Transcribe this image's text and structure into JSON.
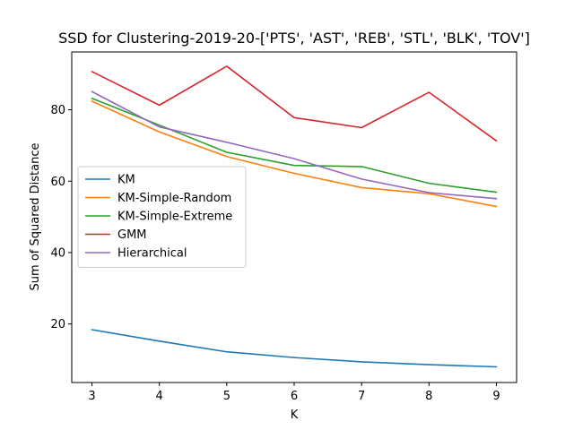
{
  "chart_data": {
    "type": "line",
    "title": "SSD for Clustering-2019-20-['PTS', 'AST', 'REB', 'STL', 'BLK', 'TOV']",
    "xlabel": "K",
    "ylabel": "Sum of Squared Distance",
    "x": [
      3,
      4,
      5,
      6,
      7,
      8,
      9
    ],
    "xlim": [
      2.7,
      9.3
    ],
    "ylim": [
      3.6,
      96.2
    ],
    "xticks": [
      3,
      4,
      5,
      6,
      7,
      8,
      9
    ],
    "yticks": [
      20,
      40,
      60,
      80
    ],
    "grid": false,
    "legend_position": "center-left",
    "series": [
      {
        "name": "KM",
        "color": "#1f77b4",
        "values": [
          18.4,
          15.2,
          12.2,
          10.6,
          9.4,
          8.6,
          8.0
        ]
      },
      {
        "name": "KM-Simple-Random",
        "color": "#ff7f0e",
        "values": [
          82.4,
          73.8,
          66.9,
          62.2,
          58.2,
          56.5,
          52.9
        ]
      },
      {
        "name": "KM-Simple-Extreme",
        "color": "#2ca02c",
        "values": [
          83.2,
          75.7,
          68.1,
          64.4,
          64.1,
          59.4,
          56.9
        ]
      },
      {
        "name": "GMM",
        "color": "#d62728",
        "values": [
          90.7,
          81.3,
          92.2,
          77.8,
          75.0,
          84.9,
          71.3
        ]
      },
      {
        "name": "Hierarchical",
        "color": "#9467bd",
        "values": [
          85.1,
          75.2,
          70.9,
          66.3,
          60.6,
          56.8,
          55.1
        ]
      }
    ]
  }
}
